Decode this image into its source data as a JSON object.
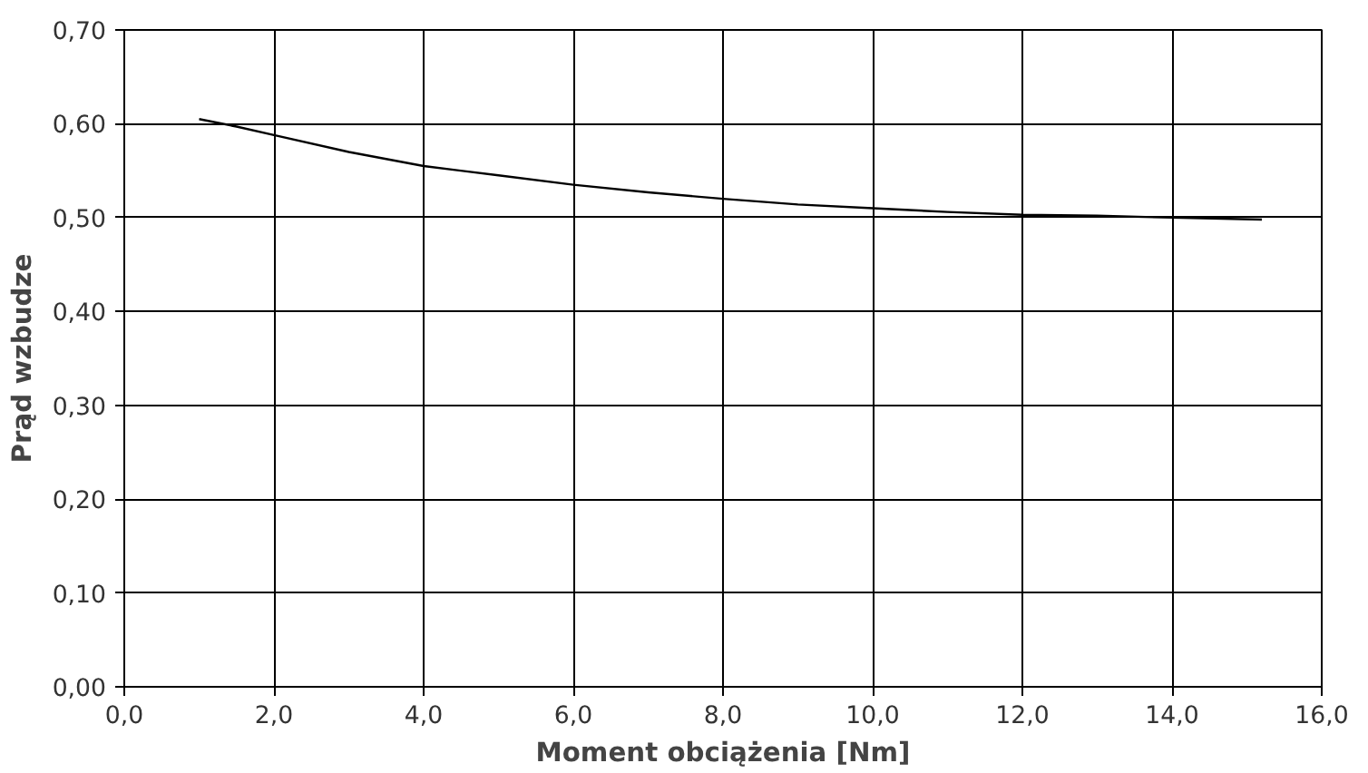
{
  "chart_data": {
    "type": "line",
    "xlabel": "Moment obciążenia [Nm]",
    "ylabel": "Prąd wzbudze",
    "x": [
      1.0,
      1.5,
      2.0,
      3.0,
      4.0,
      5.0,
      6.0,
      7.0,
      8.0,
      9.0,
      10.0,
      11.0,
      12.0,
      13.0,
      14.0,
      15.2
    ],
    "series": [
      {
        "color": "#000000",
        "values": [
          0.605,
          0.597,
          0.588,
          0.57,
          0.555,
          0.545,
          0.535,
          0.527,
          0.52,
          0.514,
          0.51,
          0.506,
          0.503,
          0.502,
          0.5,
          0.498
        ]
      }
    ],
    "xlim": [
      0,
      16
    ],
    "ylim": [
      0,
      0.7
    ],
    "xticks": [
      {
        "value": 0,
        "label": "0,0"
      },
      {
        "value": 2,
        "label": "2,0"
      },
      {
        "value": 4,
        "label": "4,0"
      },
      {
        "value": 6,
        "label": "6,0"
      },
      {
        "value": 8,
        "label": "8,0"
      },
      {
        "value": 10,
        "label": "10,0"
      },
      {
        "value": 12,
        "label": "12,0"
      },
      {
        "value": 14,
        "label": "14,0"
      },
      {
        "value": 16,
        "label": "16,0"
      }
    ],
    "yticks": [
      {
        "value": 0,
        "label": "0,00"
      },
      {
        "value": 0.1,
        "label": "0,10"
      },
      {
        "value": 0.2,
        "label": "0,20"
      },
      {
        "value": 0.3,
        "label": "0,30"
      },
      {
        "value": 0.4,
        "label": "0,40"
      },
      {
        "value": 0.5,
        "label": "0,50"
      },
      {
        "value": 0.6,
        "label": "0,60"
      },
      {
        "value": 0.7,
        "label": "0,70"
      }
    ],
    "grid": true,
    "marker": "none",
    "line_style": "solid"
  }
}
